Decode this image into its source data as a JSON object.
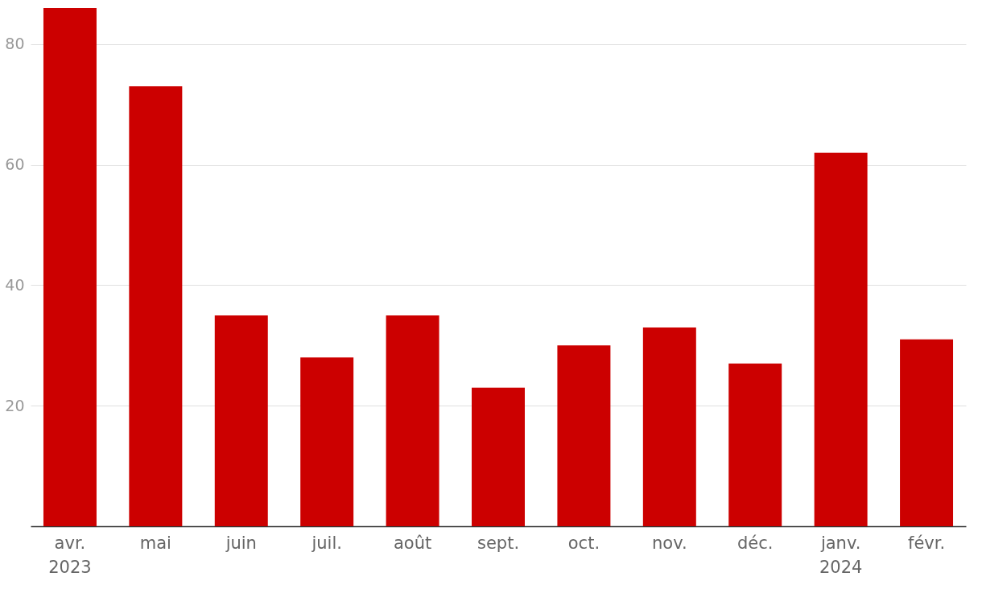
{
  "chart_data": {
    "type": "bar",
    "categories": [
      "avr.\n2023",
      "mai",
      "juin",
      "juil.",
      "août",
      "sept.",
      "oct.",
      "nov.",
      "déc.",
      "janv.\n2024",
      "févr."
    ],
    "values": [
      86,
      73,
      35,
      28,
      35,
      23,
      30,
      33,
      27,
      62,
      31
    ],
    "color": "#cc0000",
    "ylim": [
      0,
      86
    ],
    "yticks": [
      20,
      40,
      60,
      80
    ],
    "grid": "y"
  }
}
